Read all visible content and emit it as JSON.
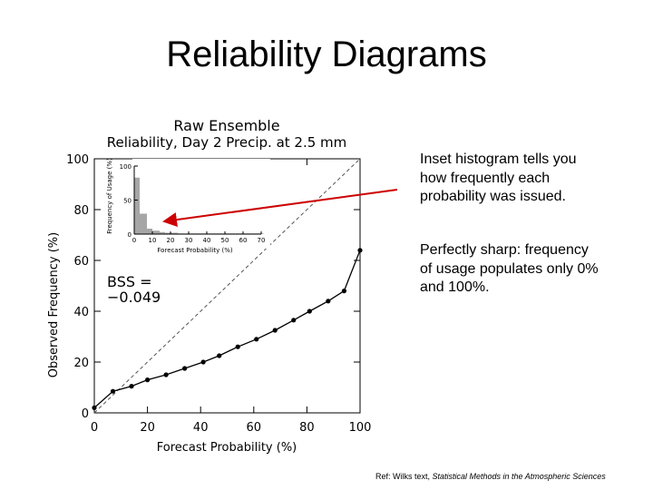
{
  "slide": {
    "title": "Reliability Diagrams",
    "note1": "Inset histogram tells you how frequently each probability was issued.",
    "note2": "Perfectly sharp: frequency of usage populates only 0% and 100%.",
    "ref_prefix": "Ref: Wilks text, ",
    "ref_title": "Statistical Methods in the Atmospheric Sciences",
    "arrow_color": "#cc0000"
  },
  "chart_data": [
    {
      "type": "line",
      "title": "Raw Ensemble",
      "subtitle": "Reliability, Day 2 Precip. at 2.5 mm",
      "xlabel": "Forecast Probability (%)",
      "ylabel": "Observed Frequency (%)",
      "xlim": [
        0,
        100
      ],
      "ylim": [
        0,
        100
      ],
      "xticks": [
        "0",
        "20",
        "40",
        "60",
        "80",
        "100"
      ],
      "yticks": [
        "0",
        "20",
        "40",
        "60",
        "80",
        "100"
      ],
      "x": [
        0,
        7,
        14,
        20,
        27,
        34,
        41,
        47,
        54,
        61,
        68,
        75,
        81,
        88,
        94,
        100
      ],
      "y": [
        2,
        8.5,
        10.5,
        13,
        15,
        17.5,
        20,
        22.5,
        26,
        29,
        32.5,
        36.5,
        40,
        44,
        48,
        64
      ],
      "diagonal_reference": true,
      "annotation": [
        "BSS =",
        "−0.049"
      ]
    },
    {
      "type": "bar",
      "xlabel": "Forecast Probability (%)",
      "ylabel": "Frequency of Usage (%)",
      "xlim": [
        0,
        70
      ],
      "ylim": [
        0,
        100
      ],
      "xticks": [
        "0",
        "10",
        "20",
        "30",
        "40",
        "50",
        "60",
        "70"
      ],
      "yticks": [
        "0",
        "50",
        "100"
      ],
      "categories": [
        "0",
        "3",
        "7",
        "10",
        "14",
        "17",
        "20",
        "24",
        "27",
        "30",
        "34",
        "37",
        "41",
        "44",
        "47",
        "51",
        "54",
        "57",
        "61",
        "64",
        "68"
      ],
      "values": [
        83,
        30,
        8,
        5,
        3,
        2,
        2,
        1,
        1,
        1,
        1,
        1,
        1,
        1,
        1,
        1,
        1,
        1,
        1,
        1,
        1
      ]
    }
  ]
}
